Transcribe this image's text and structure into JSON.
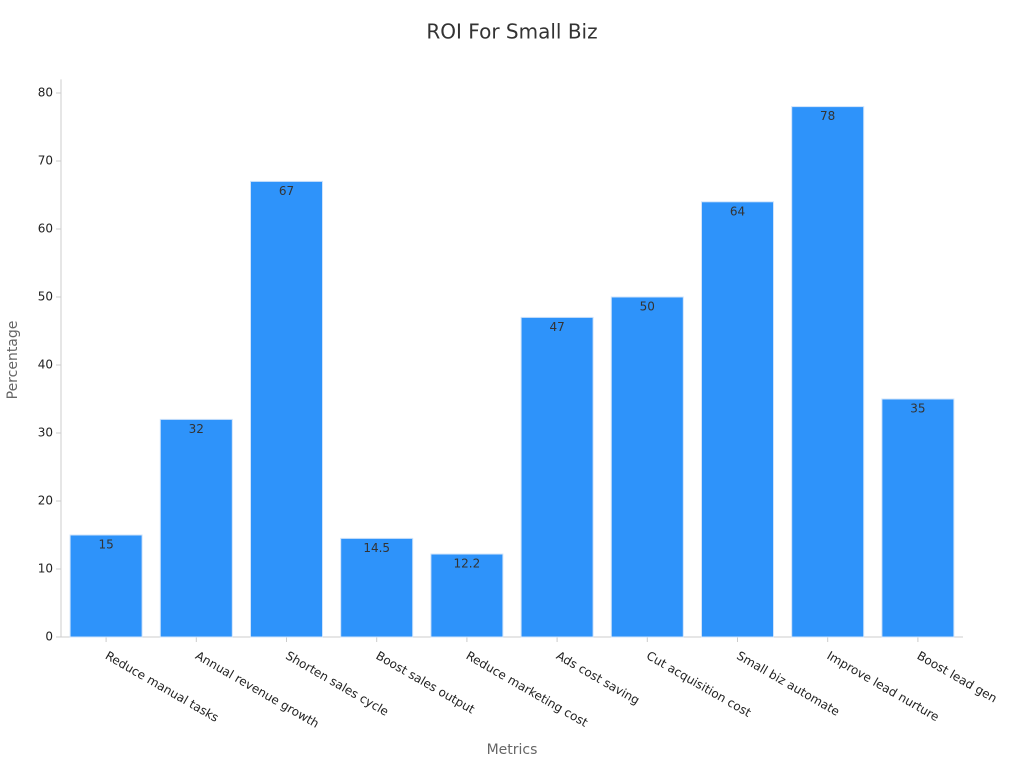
{
  "chart_data": {
    "type": "bar",
    "title": "ROI For Small Biz",
    "x_label": "Metrics",
    "y_label": "Percentage",
    "categories": [
      "Reduce manual tasks",
      "Annual revenue growth",
      "Shorten sales cycle",
      "Boost sales output",
      "Reduce marketing cost",
      "Ads cost saving",
      "Cut acquisition cost",
      "Small biz automate",
      "Improve lead nurture",
      "Boost lead gen"
    ],
    "values": [
      15,
      32,
      67,
      14.5,
      12.2,
      47,
      50,
      64,
      78,
      35
    ],
    "color": "#2e93fa",
    "ylim": [
      0,
      82
    ],
    "yticks": [
      0,
      10,
      20,
      30,
      40,
      50,
      60,
      70,
      80
    ],
    "grid": false
  }
}
